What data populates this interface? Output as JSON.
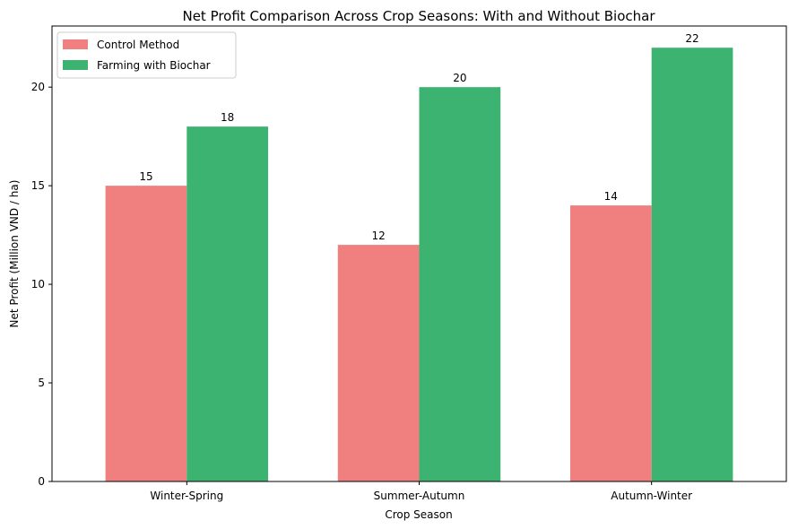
{
  "chart_data": {
    "type": "bar",
    "title": "Net Profit Comparison Across Crop Seasons: With and Without Biochar",
    "xlabel": "Crop Season",
    "ylabel": "Net Profit (Million VND / ha)",
    "categories": [
      "Winter-Spring",
      "Summer-Autumn",
      "Autumn-Winter"
    ],
    "series": [
      {
        "name": "Control Method",
        "values": [
          15,
          12,
          14
        ],
        "color": "#f08080"
      },
      {
        "name": "Farming with Biochar",
        "values": [
          18,
          20,
          22
        ],
        "color": "#3cb371"
      }
    ],
    "ylim": [
      0,
      23.1
    ],
    "yticks": [
      0,
      5,
      10,
      15,
      20
    ],
    "grid": false,
    "legend_position": "top-left"
  }
}
